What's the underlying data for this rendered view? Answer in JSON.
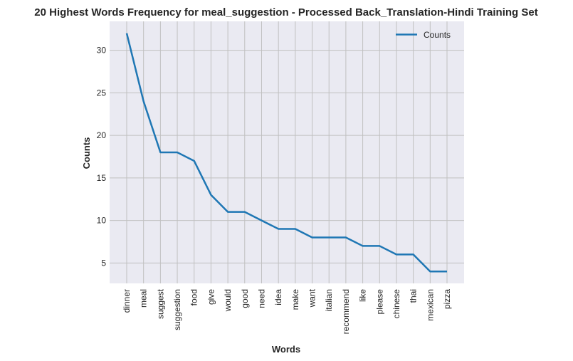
{
  "chart_data": {
    "type": "line",
    "title": "20 Highest Words Frequency for meal_suggestion - Processed Back_Translation-Hindi Training Set",
    "xlabel": "Words",
    "ylabel": "Counts",
    "categories": [
      "dinner",
      "meal",
      "suggest",
      "suggestion",
      "food",
      "give",
      "would",
      "good",
      "need",
      "idea",
      "make",
      "want",
      "italian",
      "recommend",
      "like",
      "please",
      "chinese",
      "thai",
      "mexican",
      "pizza"
    ],
    "series": [
      {
        "name": "Counts",
        "values": [
          32,
          24,
          18,
          18,
          17,
          13,
          11,
          11,
          10,
          9,
          9,
          8,
          8,
          8,
          7,
          7,
          6,
          6,
          4,
          4
        ],
        "color": "#1f77b4"
      }
    ],
    "yticks": [
      5,
      10,
      15,
      20,
      25,
      30
    ],
    "ylim": [
      2.6,
      33.4
    ],
    "grid": true,
    "legend_position": "top-right",
    "background_color": "#eaeaf2",
    "grid_color": "#c0c0c0"
  }
}
